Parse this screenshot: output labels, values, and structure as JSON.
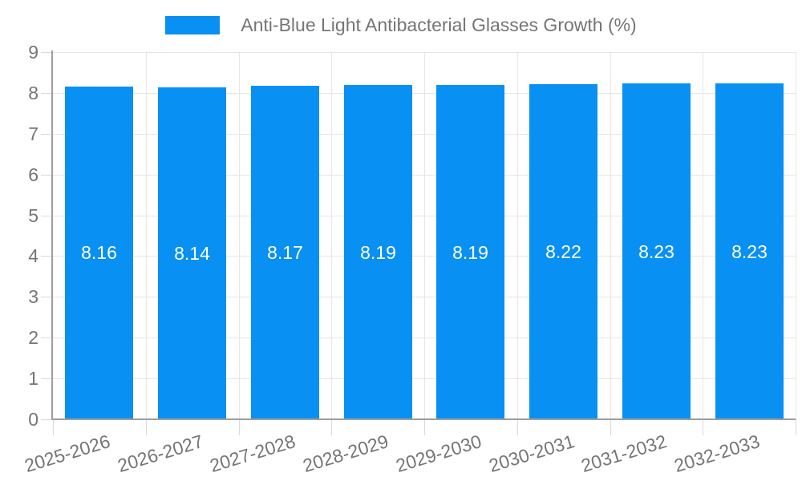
{
  "chart_data": {
    "type": "bar",
    "title": "Anti-Blue Light Antibacterial Glasses Growth (%)",
    "legend": "Anti-Blue Light Antibacterial Glasses Growth (%)",
    "legend_position": "top",
    "categories": [
      "2025-2026",
      "2026-2027",
      "2027-2028",
      "2028-2029",
      "2029-2030",
      "2030-2031",
      "2031-2032",
      "2032-2033"
    ],
    "values": [
      8.16,
      8.14,
      8.17,
      8.19,
      8.19,
      8.22,
      8.23,
      8.23
    ],
    "value_labels": [
      "8.16",
      "8.14",
      "8.17",
      "8.19",
      "8.19",
      "8.22",
      "8.23",
      "8.23"
    ],
    "xlabel": "",
    "ylabel": "",
    "ylim": [
      0,
      9
    ],
    "yticks": [
      "0",
      "1",
      "2",
      "3",
      "4",
      "5",
      "6",
      "7",
      "8",
      "9"
    ],
    "grid": true,
    "colors": {
      "bar": "#0890f3",
      "value_label": "#ffffff",
      "axis_text": "#757575",
      "gridline": "#e6e6e6",
      "axis_line": "#9e9e9e",
      "tick": "#d9d9d9",
      "background": "#ffffff"
    }
  }
}
